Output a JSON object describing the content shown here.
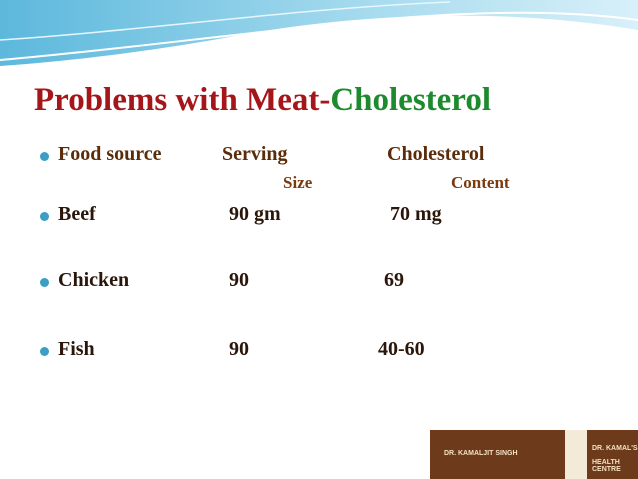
{
  "title": {
    "part1": "Problems with Meat-",
    "part2": "Cholesterol"
  },
  "table": {
    "header": [
      "Food source",
      "Serving",
      "Cholesterol"
    ],
    "subheader": [
      "Size",
      "Content"
    ],
    "rows": [
      [
        "Beef",
        "90 gm",
        "70 mg"
      ],
      [
        "Chicken",
        "90",
        "69"
      ],
      [
        "Fish",
        "90",
        "40-60"
      ]
    ]
  },
  "logo": {
    "left": "DR. KAMALJIT SINGH",
    "right1": "DR. KAMAL'S",
    "right2": "HEALTH CENTRE"
  }
}
